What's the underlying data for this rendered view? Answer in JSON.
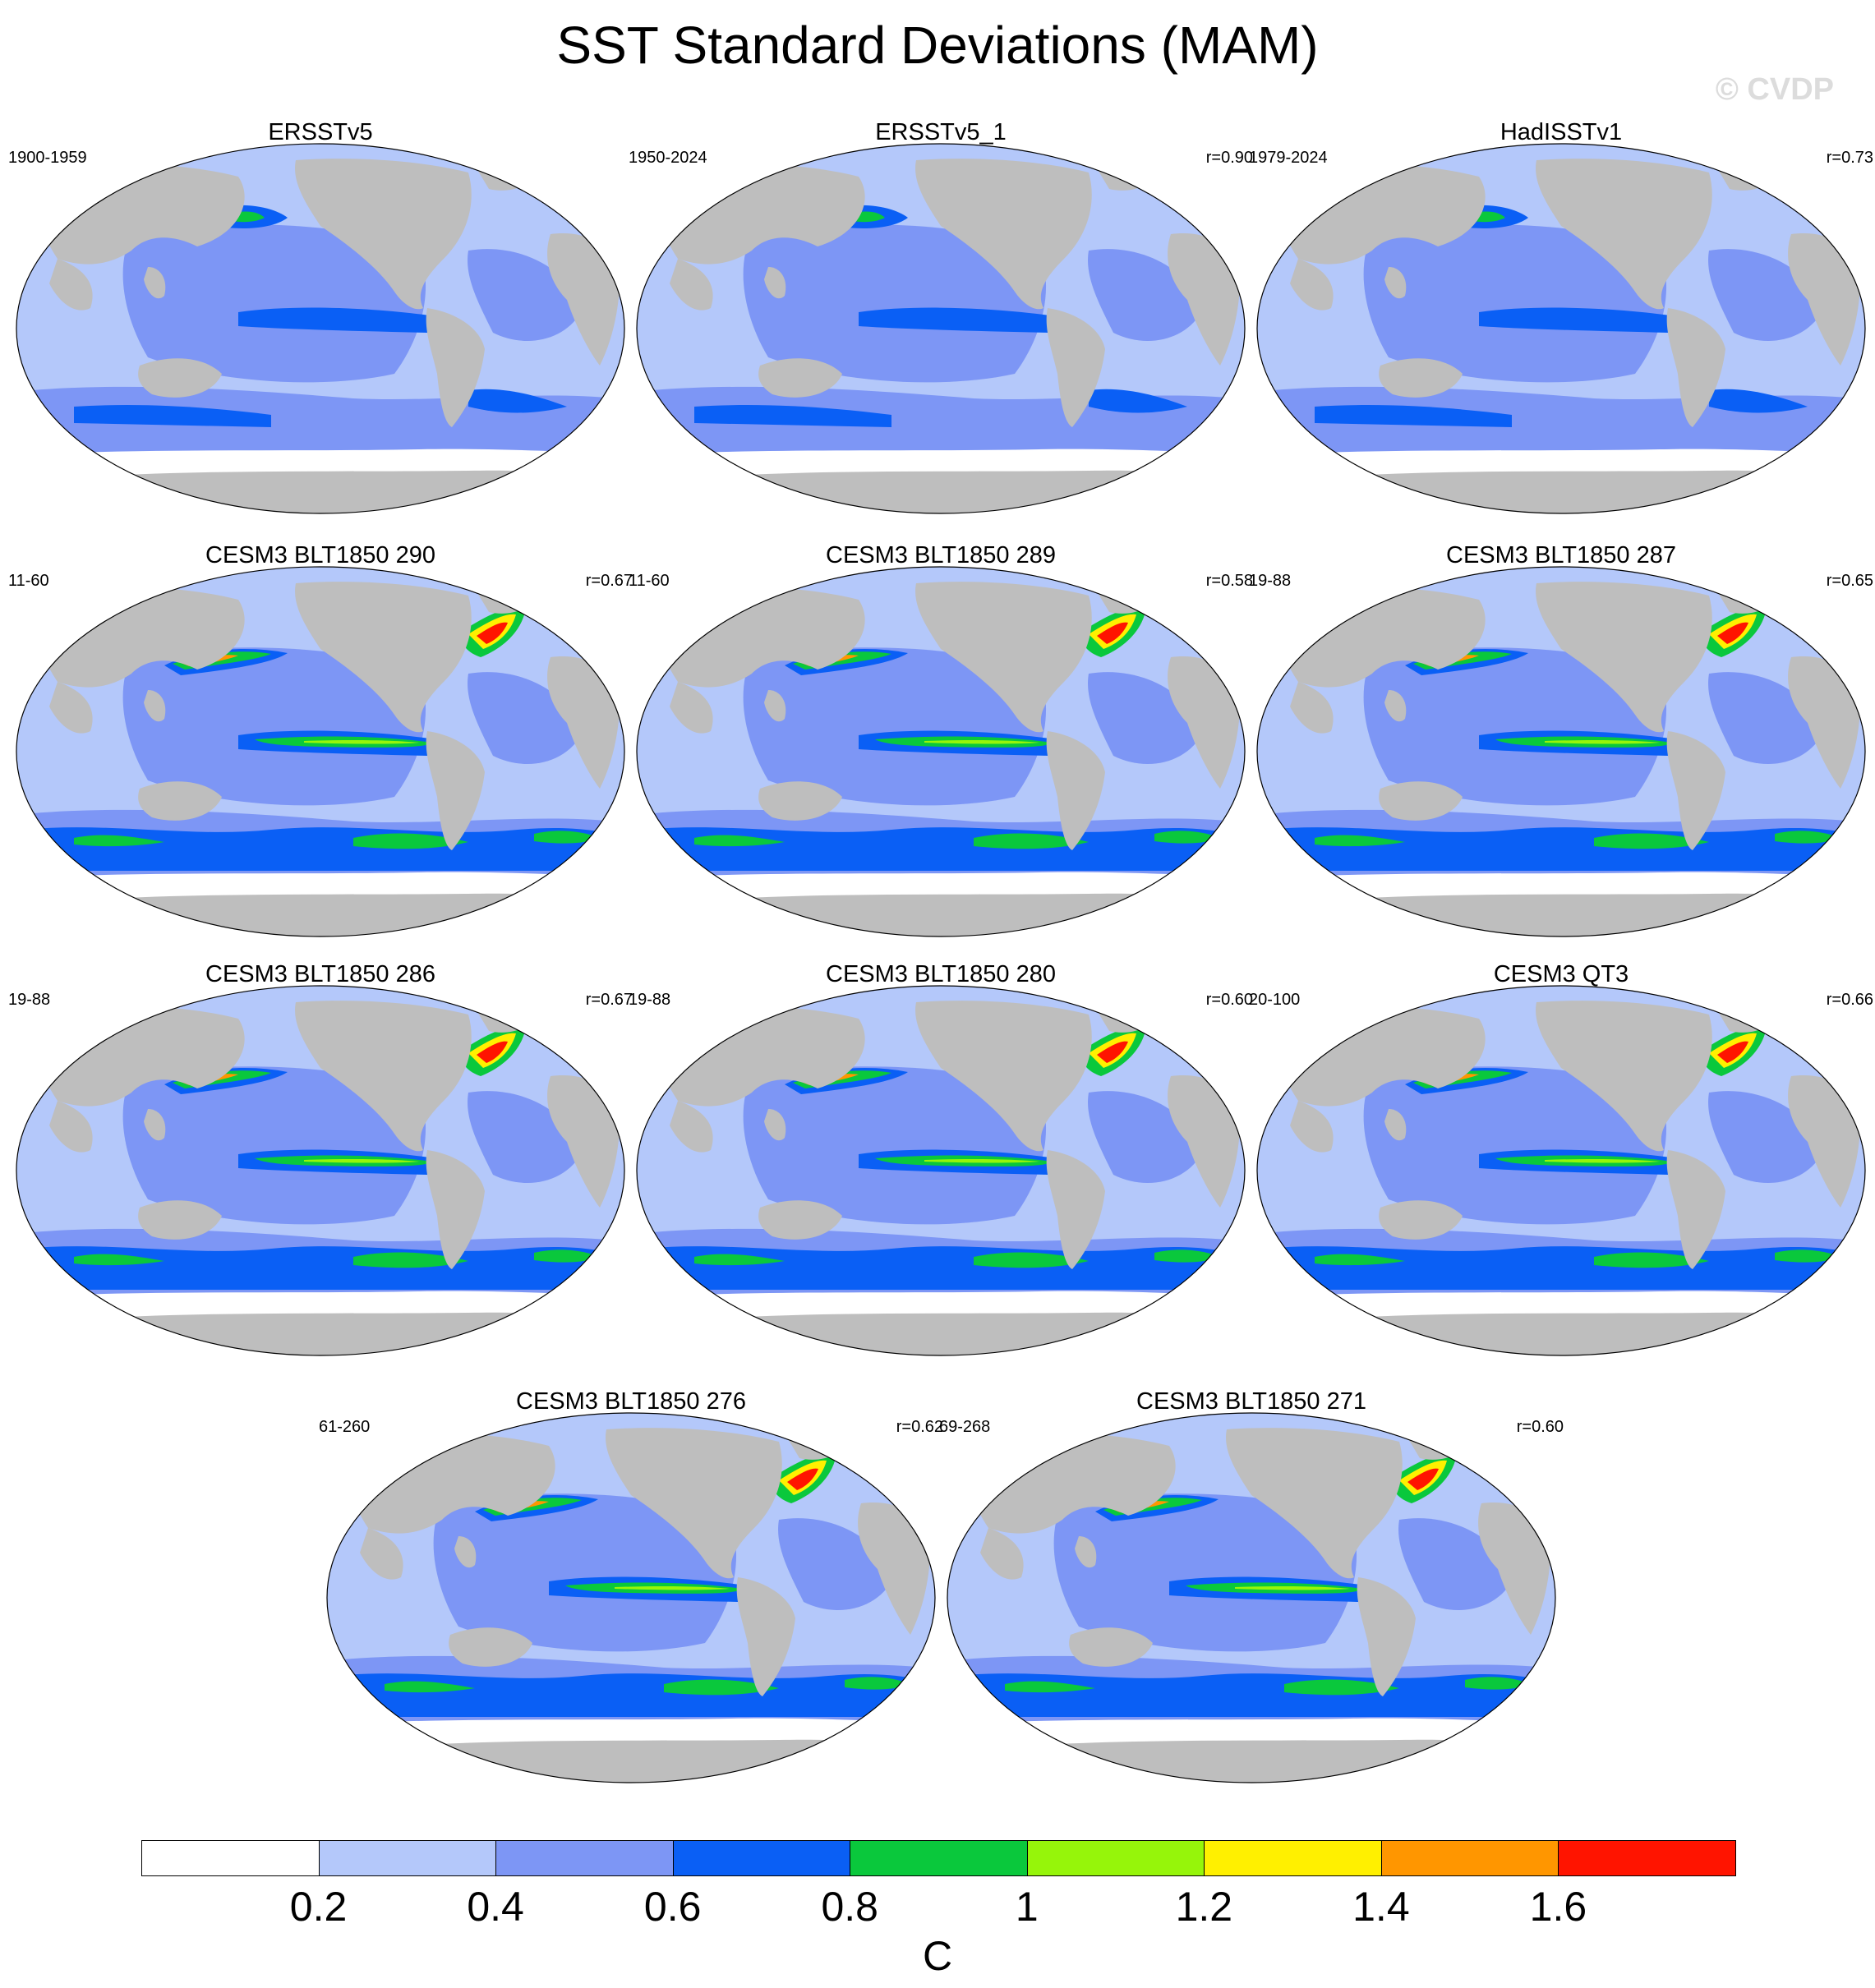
{
  "figure": {
    "title": "SST Standard Deviations (MAM)",
    "copyright": "© CVDP"
  },
  "panels": [
    {
      "title": "ERSSTv5",
      "period": "1900-1959",
      "corr": ""
    },
    {
      "title": "ERSSTv5_1",
      "period": "1950-2024",
      "corr": "r=0.90"
    },
    {
      "title": "HadISSTv1",
      "period": "1979-2024",
      "corr": "r=0.73"
    },
    {
      "title": "CESM3 BLT1850 290",
      "period": "11-60",
      "corr": "r=0.67"
    },
    {
      "title": "CESM3 BLT1850 289",
      "period": "11-60",
      "corr": "r=0.58"
    },
    {
      "title": "CESM3 BLT1850 287",
      "period": "19-88",
      "corr": "r=0.65"
    },
    {
      "title": "CESM3 BLT1850 286",
      "period": "19-88",
      "corr": "r=0.67"
    },
    {
      "title": "CESM3 BLT1850 280",
      "period": "19-88",
      "corr": "r=0.60"
    },
    {
      "title": "CESM3 QT3",
      "period": "20-100",
      "corr": "r=0.66"
    },
    {
      "title": "CESM3 BLT1850 276",
      "period": "61-260",
      "corr": "r=0.62"
    },
    {
      "title": "CESM3 BLT1850 271",
      "period": "69-268",
      "corr": "r=0.60"
    }
  ],
  "colorbar": {
    "unit": "C",
    "tick_labels": [
      "0.2",
      "0.4",
      "0.6",
      "0.8",
      "1",
      "1.2",
      "1.4",
      "1.6"
    ],
    "colors": [
      "#ffffff",
      "#b4c8fa",
      "#7d96f5",
      "#0a5ff5",
      "#0ac83c",
      "#96f50a",
      "#fff000",
      "#ff9600",
      "#ff1400"
    ],
    "land_color": "#bebebe"
  }
}
